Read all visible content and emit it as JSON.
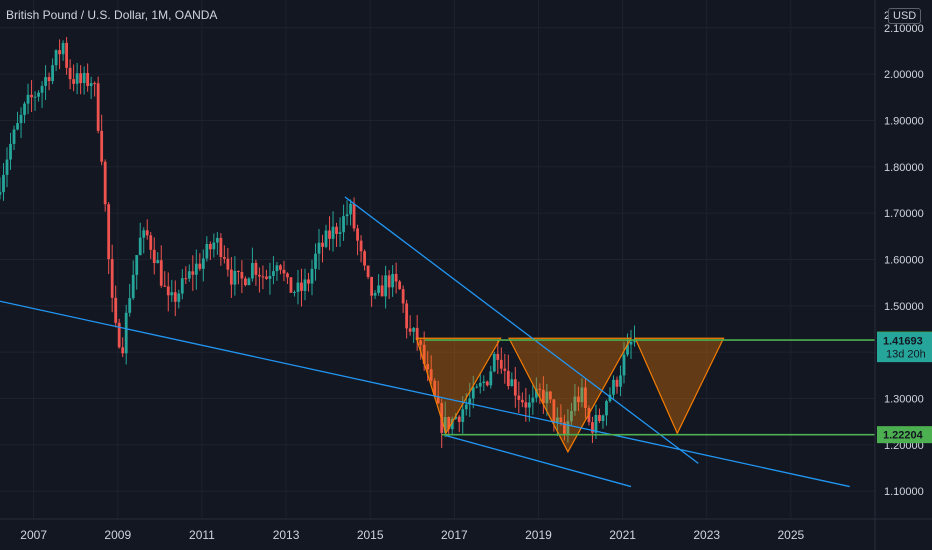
{
  "header": {
    "title": "British Pound / U.S. Dollar, 1M, OANDA",
    "currency": "USD"
  },
  "colors": {
    "background": "#131722",
    "up": "#26a69a",
    "down": "#ef5350",
    "trend": "#2196f3",
    "level": "#4caf50",
    "pattern": "#f57c00"
  },
  "chart_data": {
    "type": "candlestick",
    "title": "British Pound / U.S. Dollar, 1M, OANDA",
    "y_ticks": [
      "1.10000",
      "1.20000",
      "1.30000",
      "1.40000",
      "1.50000",
      "1.60000",
      "1.70000",
      "1.80000",
      "1.90000",
      "2.00000",
      "2.10000"
    ],
    "y_top_label": "2",
    "x_ticks": [
      "2007",
      "2009",
      "2011",
      "2013",
      "2015",
      "2017",
      "2019",
      "2021",
      "2023",
      "2025"
    ],
    "ylim": [
      1.04,
      2.16
    ],
    "xlim": [
      2006.2,
      2027.0
    ],
    "price_path": [
      [
        2006.2,
        1.74
      ],
      [
        2006.5,
        1.84
      ],
      [
        2006.9,
        1.93
      ],
      [
        2007.3,
        1.98
      ],
      [
        2007.6,
        2.03
      ],
      [
        2007.8,
        2.07
      ],
      [
        2007.9,
        2.0
      ],
      [
        2008.2,
        1.98
      ],
      [
        2008.5,
        1.99
      ],
      [
        2008.7,
        1.83
      ],
      [
        2008.9,
        1.55
      ],
      [
        2009.0,
        1.45
      ],
      [
        2009.2,
        1.42
      ],
      [
        2009.4,
        1.55
      ],
      [
        2009.6,
        1.64
      ],
      [
        2009.8,
        1.65
      ],
      [
        2010.0,
        1.6
      ],
      [
        2010.3,
        1.5
      ],
      [
        2010.6,
        1.54
      ],
      [
        2010.9,
        1.58
      ],
      [
        2011.1,
        1.6
      ],
      [
        2011.4,
        1.64
      ],
      [
        2011.6,
        1.62
      ],
      [
        2011.8,
        1.56
      ],
      [
        2012.0,
        1.55
      ],
      [
        2012.3,
        1.59
      ],
      [
        2012.6,
        1.56
      ],
      [
        2012.9,
        1.61
      ],
      [
        2013.1,
        1.54
      ],
      [
        2013.4,
        1.53
      ],
      [
        2013.6,
        1.55
      ],
      [
        2013.8,
        1.61
      ],
      [
        2014.1,
        1.65
      ],
      [
        2014.4,
        1.68
      ],
      [
        2014.6,
        1.71
      ],
      [
        2014.8,
        1.63
      ],
      [
        2015.0,
        1.55
      ],
      [
        2015.2,
        1.51
      ],
      [
        2015.5,
        1.56
      ],
      [
        2015.8,
        1.53
      ],
      [
        2016.0,
        1.44
      ],
      [
        2016.2,
        1.43
      ],
      [
        2016.5,
        1.33
      ],
      [
        2016.8,
        1.24
      ],
      [
        2017.0,
        1.25
      ],
      [
        2017.3,
        1.28
      ],
      [
        2017.6,
        1.31
      ],
      [
        2017.9,
        1.35
      ],
      [
        2018.1,
        1.41
      ],
      [
        2018.3,
        1.36
      ],
      [
        2018.6,
        1.31
      ],
      [
        2018.9,
        1.28
      ],
      [
        2019.1,
        1.31
      ],
      [
        2019.3,
        1.3
      ],
      [
        2019.5,
        1.25
      ],
      [
        2019.7,
        1.22
      ],
      [
        2019.9,
        1.29
      ],
      [
        2020.1,
        1.31
      ],
      [
        2020.3,
        1.24
      ],
      [
        2020.5,
        1.25
      ],
      [
        2020.7,
        1.3
      ],
      [
        2020.9,
        1.33
      ],
      [
        2021.1,
        1.38
      ],
      [
        2021.3,
        1.42
      ]
    ],
    "annotations": {
      "support": {
        "value": 1.22204,
        "label": "1.22204"
      },
      "resistance": {
        "value": 1.4261,
        "label": "1.42610"
      },
      "current": {
        "value": 1.41693,
        "label": "1.41693",
        "countdown": "13d 20h"
      },
      "lines": [
        {
          "name": "upper-trendline",
          "from": [
            2014.4,
            1.735
          ],
          "to": [
            2022.8,
            1.16
          ]
        },
        {
          "name": "lower-trendline",
          "from": [
            2006.2,
            1.51
          ],
          "to": [
            2026.4,
            1.11
          ]
        },
        {
          "name": "lower-trendline-2",
          "from": [
            2016.8,
            1.22
          ],
          "to": [
            2021.2,
            1.11
          ]
        }
      ],
      "pattern_triangles": [
        {
          "p1": [
            2016.1,
            1.43
          ],
          "p2": [
            2016.8,
            1.225
          ],
          "p3": [
            2018.1,
            1.43
          ]
        },
        {
          "p1": [
            2018.3,
            1.43
          ],
          "p2": [
            2019.7,
            1.185
          ],
          "p3": [
            2021.2,
            1.43
          ]
        },
        {
          "p1": [
            2021.3,
            1.43
          ],
          "p2": [
            2022.3,
            1.225
          ],
          "p3": [
            2023.4,
            1.43
          ]
        }
      ]
    }
  }
}
